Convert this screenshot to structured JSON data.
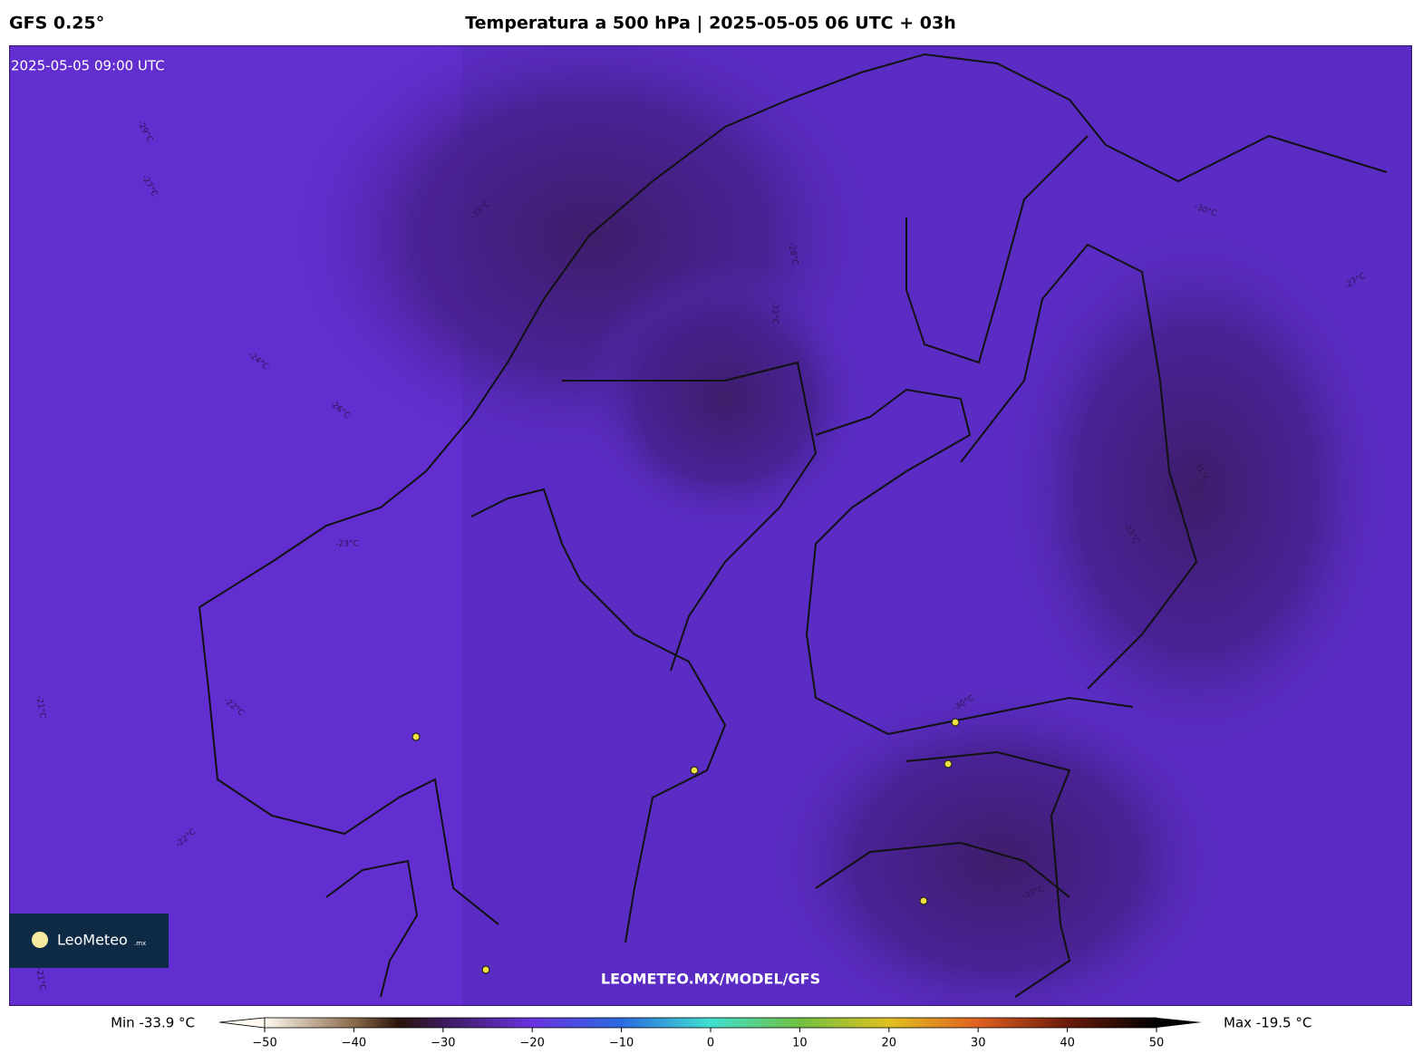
{
  "header": {
    "model": "GFS 0.25°",
    "title": "Temperatura a 500 hPa | 2025-05-05 06 UTC + 03h"
  },
  "map": {
    "timestamp": "2025-05-05 09:00 UTC",
    "watermark": "LEOMETEO.MX/MODEL/GFS",
    "contour_labels": [
      "-33°C",
      "-31°C",
      "-32°C",
      "-30°C",
      "-29°C",
      "-27°C",
      "-26°C",
      "-24°C",
      "-23°C",
      "-22°C",
      "-21°C",
      "-33°C",
      "-32°C",
      "-30°C",
      "-28°C",
      "-27°C",
      "-22°C",
      "-21°C"
    ]
  },
  "logo": {
    "name": "LeoMeteo",
    "suffix": ".mx"
  },
  "colorbar": {
    "min_label": "Min -33.9 °C",
    "max_label": "Max -19.5 °C",
    "lim": [
      -50,
      50
    ],
    "ticks": [
      {
        "value": -50,
        "label": "−50"
      },
      {
        "value": -40,
        "label": "−40"
      },
      {
        "value": -30,
        "label": "−30"
      },
      {
        "value": -20,
        "label": "−20"
      },
      {
        "value": -10,
        "label": "−10"
      },
      0,
      10,
      20,
      30,
      40,
      50
    ]
  }
}
